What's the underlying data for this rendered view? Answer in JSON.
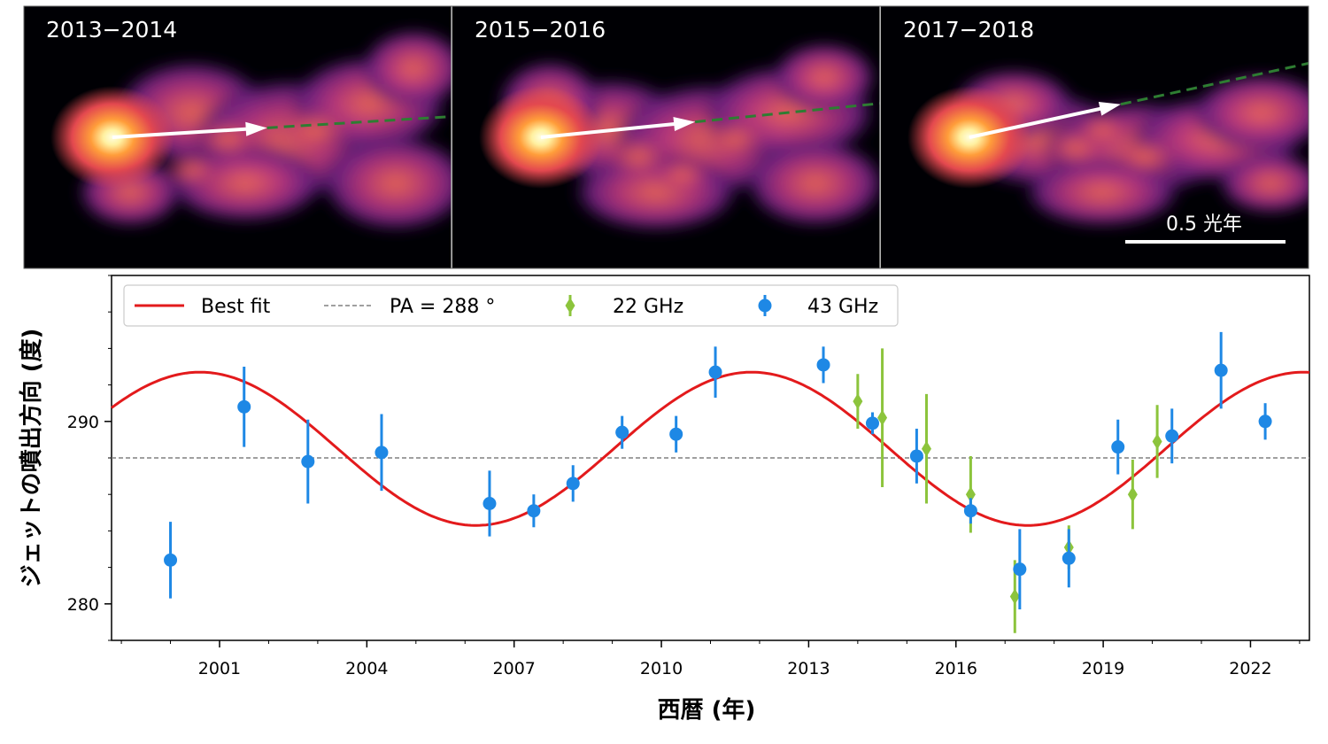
{
  "images": {
    "panels": [
      {
        "label": "2013−2014",
        "angle_deg": 288
      },
      {
        "label": "2015−2016",
        "angle_deg": 287
      },
      {
        "label": "2017−2018",
        "angle_deg": 284
      }
    ],
    "scale_bar_label": "0.5 光年"
  },
  "chart_data": {
    "type": "scatter",
    "xlabel": "西暦 (年)",
    "ylabel": "ジェットの噴出方向 (度)",
    "xlim": [
      1998.8,
      2023.2
    ],
    "ylim": [
      278,
      298
    ],
    "xticks": [
      2001,
      2004,
      2007,
      2010,
      2013,
      2016,
      2019,
      2022
    ],
    "yticks": [
      280,
      290
    ],
    "legend_position": "top-left",
    "reference_line": {
      "name": "PA = 288 °",
      "value": 288,
      "color": "#808080"
    },
    "fit": {
      "name": "Best fit",
      "color": "#e31a1c",
      "offset": 288.5,
      "amplitude": 4.2,
      "period": 11.24,
      "peak_year": 2000.6
    },
    "series": [
      {
        "name": "22 GHz",
        "marker": "diamond",
        "color": "#8cc43c",
        "points": [
          {
            "x": 2014.0,
            "y": 291.1,
            "err": 1.5
          },
          {
            "x": 2014.5,
            "y": 290.2,
            "err": 3.8
          },
          {
            "x": 2015.4,
            "y": 288.5,
            "err": 3.0
          },
          {
            "x": 2016.3,
            "y": 286.0,
            "err": 2.1
          },
          {
            "x": 2017.2,
            "y": 280.4,
            "err": 2.0
          },
          {
            "x": 2018.3,
            "y": 283.1,
            "err": 1.2
          },
          {
            "x": 2019.6,
            "y": 286.0,
            "err": 1.9
          },
          {
            "x": 2020.1,
            "y": 288.9,
            "err": 2.0
          }
        ]
      },
      {
        "name": "43 GHz",
        "marker": "circle",
        "color": "#1e88e5",
        "points": [
          {
            "x": 2000.0,
            "y": 282.4,
            "err": 2.1
          },
          {
            "x": 2001.5,
            "y": 290.8,
            "err": 2.2
          },
          {
            "x": 2002.8,
            "y": 287.8,
            "err": 2.3
          },
          {
            "x": 2004.3,
            "y": 288.3,
            "err": 2.1
          },
          {
            "x": 2006.5,
            "y": 285.5,
            "err": 1.8
          },
          {
            "x": 2007.4,
            "y": 285.1,
            "err": 0.9
          },
          {
            "x": 2008.2,
            "y": 286.6,
            "err": 1.0
          },
          {
            "x": 2009.2,
            "y": 289.4,
            "err": 0.9
          },
          {
            "x": 2010.3,
            "y": 289.3,
            "err": 1.0
          },
          {
            "x": 2011.1,
            "y": 292.7,
            "err": 1.4
          },
          {
            "x": 2013.3,
            "y": 293.1,
            "err": 1.0
          },
          {
            "x": 2014.3,
            "y": 289.9,
            "err": 0.6
          },
          {
            "x": 2015.2,
            "y": 288.1,
            "err": 1.5
          },
          {
            "x": 2016.3,
            "y": 285.1,
            "err": 0.7
          },
          {
            "x": 2017.3,
            "y": 281.9,
            "err": 2.2
          },
          {
            "x": 2018.3,
            "y": 282.5,
            "err": 1.6
          },
          {
            "x": 2019.3,
            "y": 288.6,
            "err": 1.5
          },
          {
            "x": 2020.4,
            "y": 289.2,
            "err": 1.5
          },
          {
            "x": 2021.4,
            "y": 292.8,
            "err": 2.1
          },
          {
            "x": 2022.3,
            "y": 290.0,
            "err": 1.0
          }
        ]
      }
    ]
  }
}
